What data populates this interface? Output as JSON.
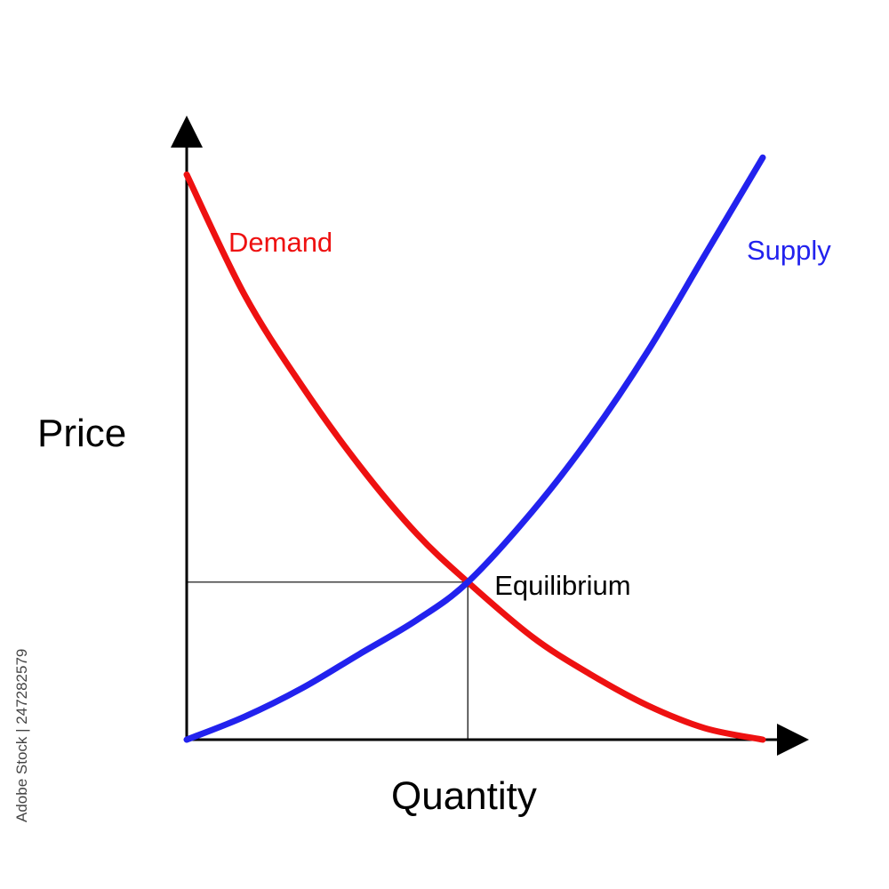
{
  "chart_data": {
    "type": "line",
    "title": "",
    "xlabel": "Quantity",
    "ylabel": "Price",
    "grid": false,
    "xlim": [
      0,
      1
    ],
    "ylim": [
      0,
      1
    ],
    "series": [
      {
        "name": "Demand",
        "color": "#ee1111",
        "x": [
          0.0,
          0.1,
          0.2,
          0.3,
          0.4,
          0.488,
          0.6,
          0.7,
          0.8,
          0.9,
          1.0
        ],
        "y": [
          0.99,
          0.78,
          0.62,
          0.48,
          0.36,
          0.276,
          0.18,
          0.115,
          0.06,
          0.02,
          0.0
        ]
      },
      {
        "name": "Supply",
        "color": "#2222ee",
        "x": [
          0.0,
          0.1,
          0.2,
          0.3,
          0.4,
          0.488,
          0.6,
          0.7,
          0.8,
          0.9,
          1.0
        ],
        "y": [
          0.0,
          0.04,
          0.09,
          0.15,
          0.21,
          0.276,
          0.4,
          0.53,
          0.68,
          0.85,
          1.02
        ]
      }
    ],
    "annotations": [
      {
        "text": "Equilibrium",
        "x": 0.488,
        "y": 0.276
      }
    ]
  },
  "watermark": {
    "image_id": "247282579",
    "brand": "Adobe Stock"
  }
}
